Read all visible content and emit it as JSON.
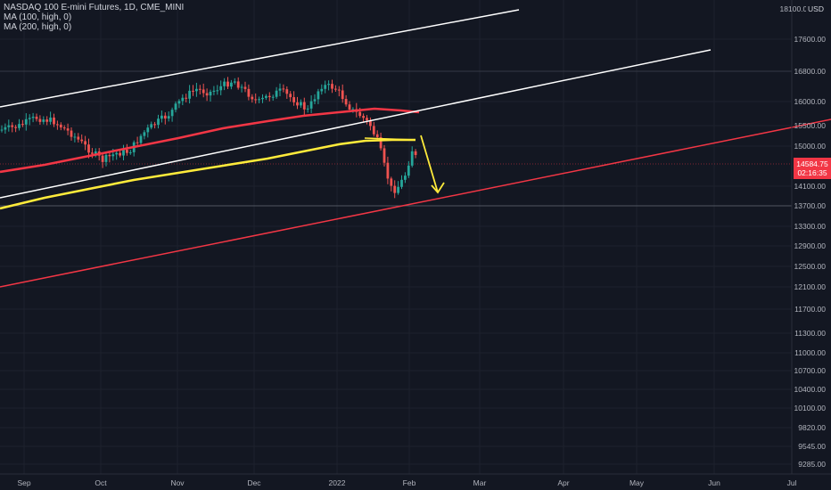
{
  "legend": {
    "symbol": "NASDAQ 100 E-mini Futures, 1D, CME_MINI",
    "ma100": "MA (100, high, 0)",
    "ma200": "MA (200, high, 0)"
  },
  "price_scale": {
    "currency": "USD",
    "labels": [
      "17600.00",
      "16800.00",
      "16000.00",
      "15500.00",
      "15000.00",
      "14100.00",
      "13700.00",
      "13300.00",
      "12900.00",
      "12500.00",
      "12100.00",
      "11700.00",
      "11300.00",
      "11000.00",
      "10700.00",
      "10400.00",
      "10100.00",
      "9820.00",
      "9545.00",
      "9285.00"
    ],
    "top_label": "18100.00"
  },
  "time_scale": {
    "labels": [
      "Sep",
      "Oct",
      "Nov",
      "Dec",
      "2022",
      "Feb",
      "Mar",
      "Apr",
      "May",
      "Jun",
      "Jul"
    ]
  },
  "current_price": {
    "value": "14584.75",
    "countdown": "02:16:35"
  },
  "colors": {
    "background": "#131722",
    "up_candle": "#26a69a",
    "down_candle": "#ef5350",
    "ma100": "#f23645",
    "ma200": "#ffeb3b",
    "channel_lines": "#ffffff",
    "support_line": "#f23645",
    "arrow": "#ffeb3b"
  }
}
